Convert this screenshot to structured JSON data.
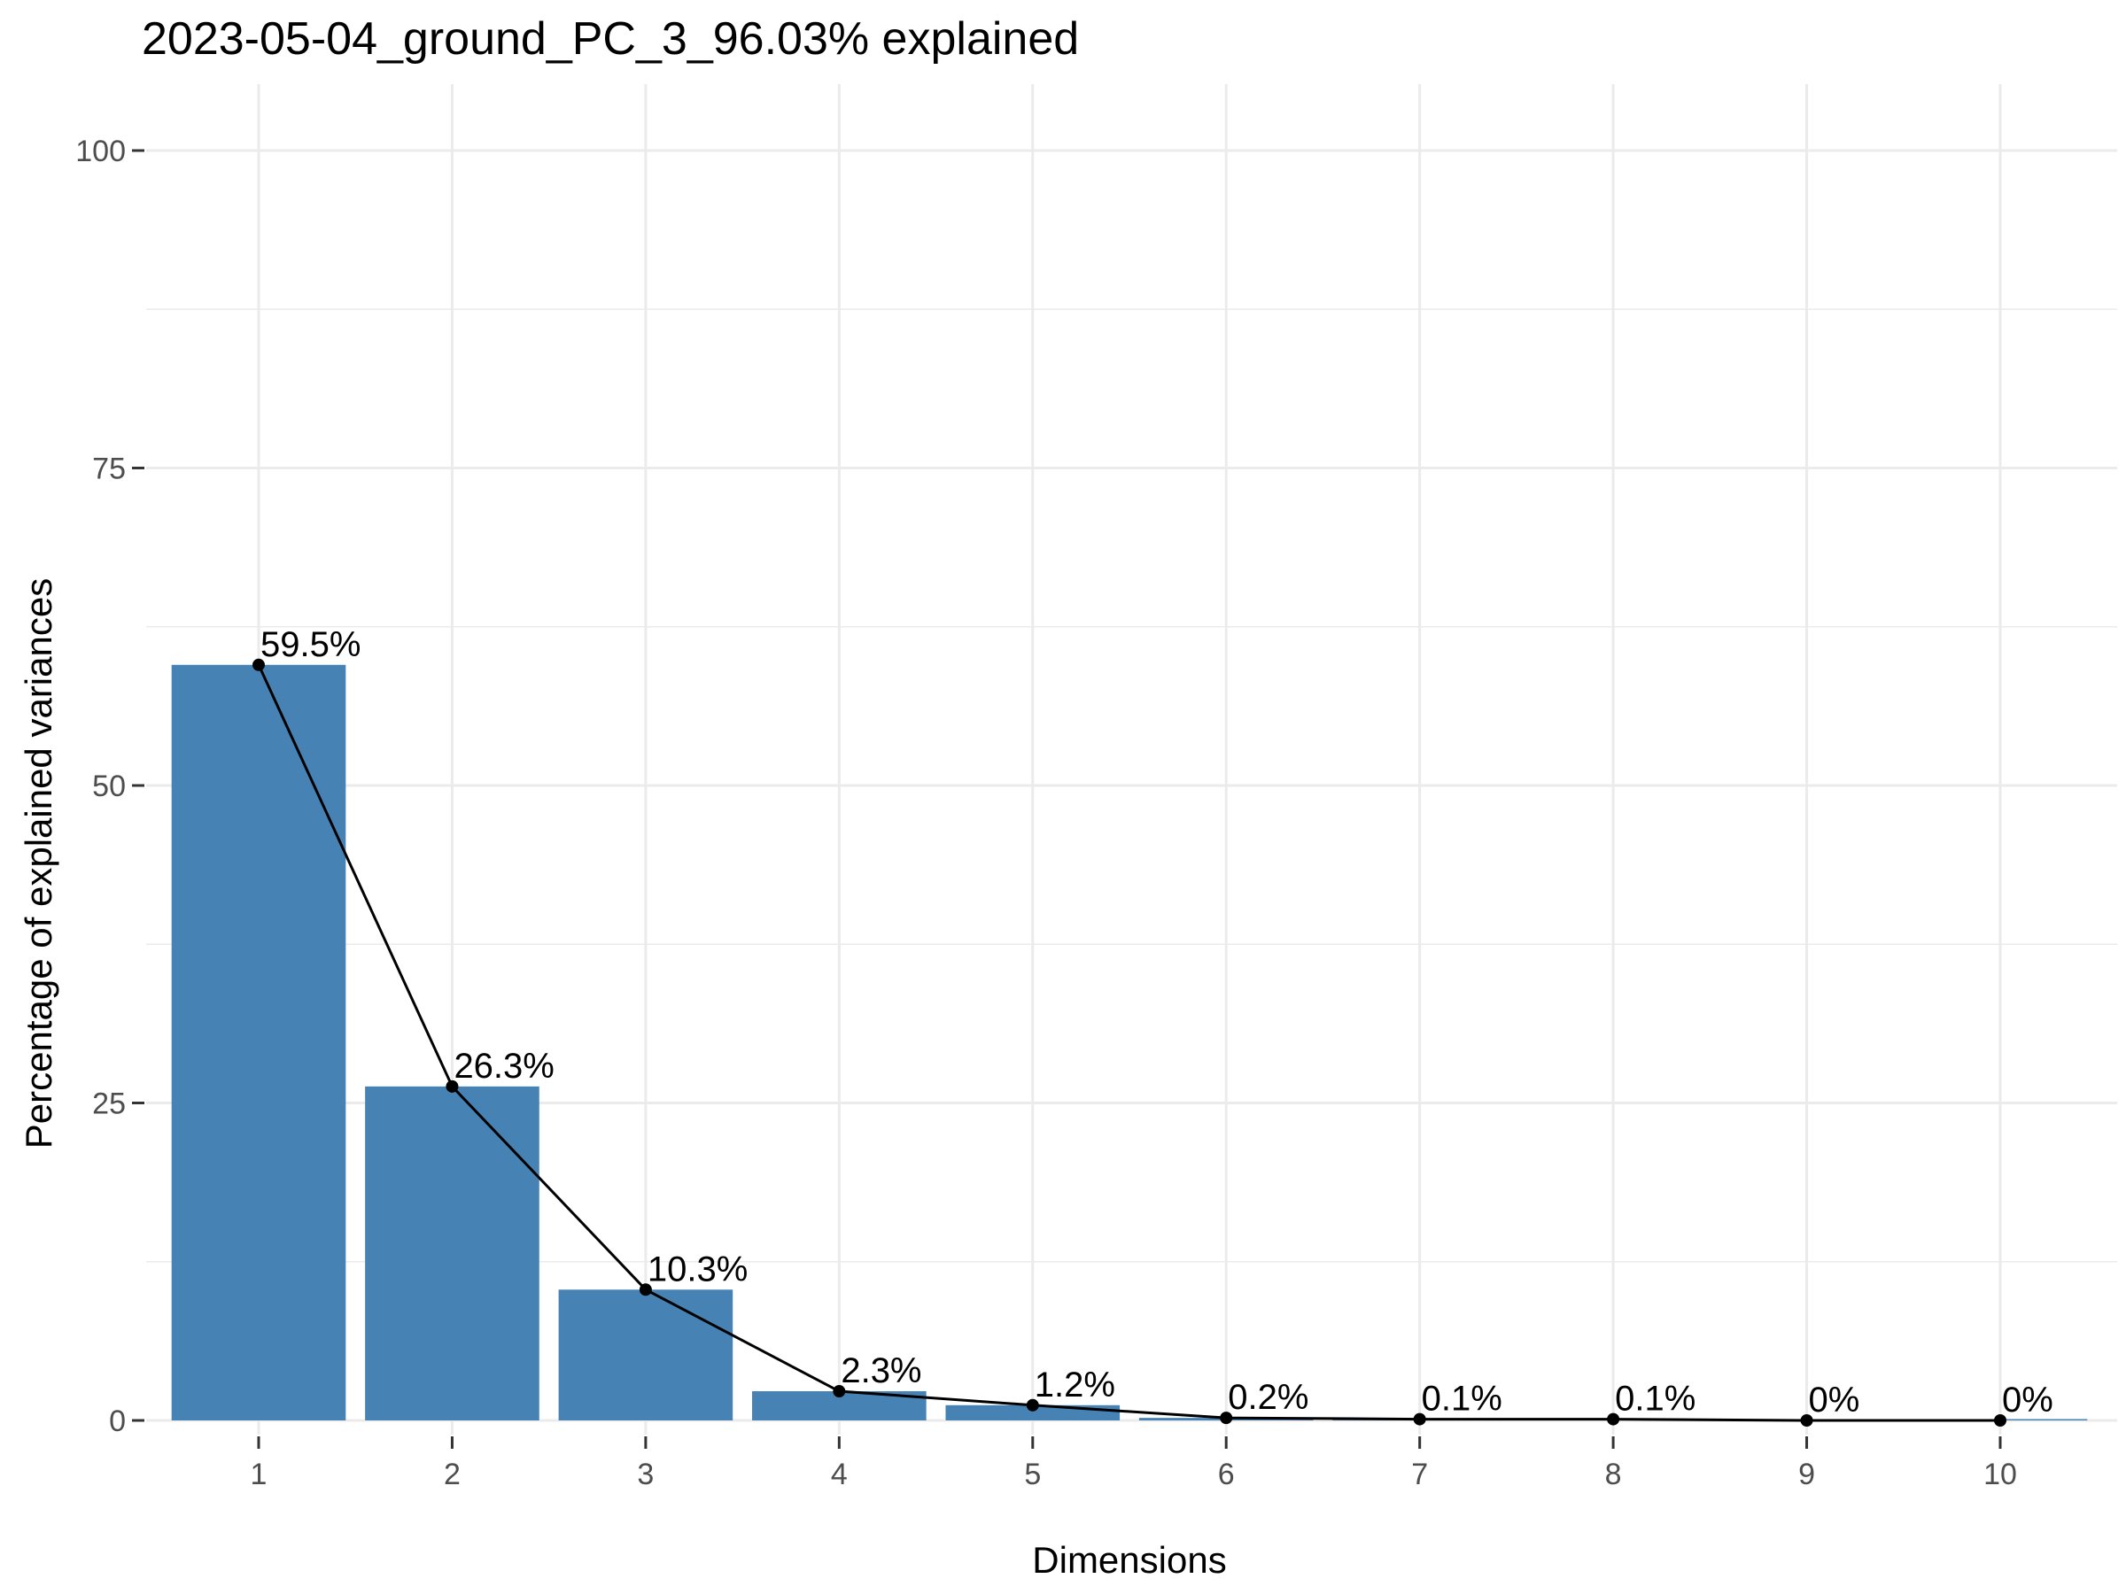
{
  "chart_data": {
    "type": "bar",
    "title": "2023-05-04_ground_PC_3_96.03% explained",
    "xlabel": "Dimensions",
    "ylabel": "Percentage of explained variances",
    "categories": [
      "1",
      "2",
      "3",
      "4",
      "5",
      "6",
      "7",
      "8",
      "9",
      "10"
    ],
    "values": [
      59.5,
      26.3,
      10.3,
      2.3,
      1.2,
      0.2,
      0.1,
      0.1,
      0.0,
      0.0
    ],
    "data_labels": [
      "59.5%",
      "26.3%",
      "10.3%",
      "2.3%",
      "1.2%",
      "0.2%",
      "0.1%",
      "0.1%",
      "0%",
      "0%"
    ],
    "yticks": [
      "0",
      "25",
      "50",
      "75",
      "100"
    ],
    "ylim": [
      0,
      100
    ],
    "grid": true,
    "line_overlay": true,
    "colors": {
      "bar": "#4682B4",
      "line": "#000000",
      "grid": "#EBEBEB"
    }
  }
}
